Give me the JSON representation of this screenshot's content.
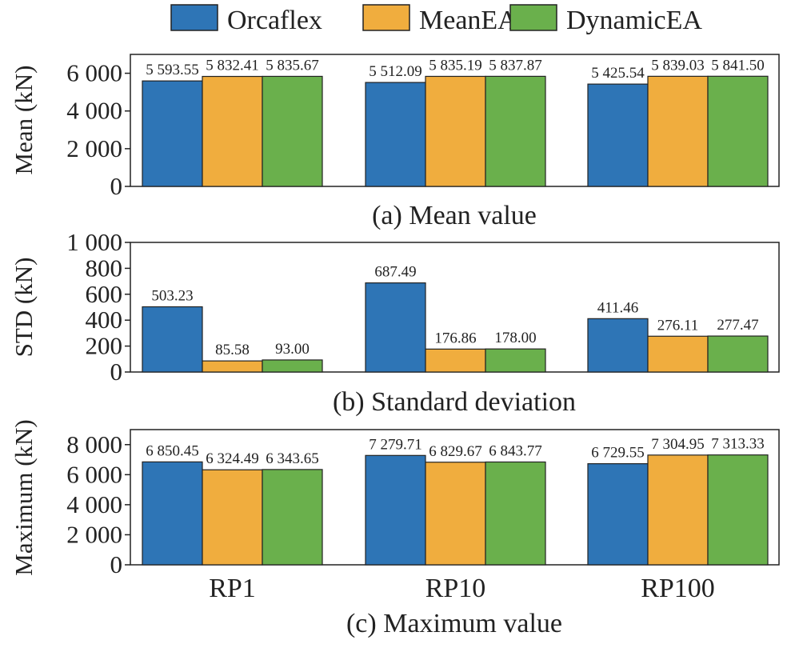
{
  "legend": [
    {
      "name": "Orcaflex",
      "color": "#2e75b6"
    },
    {
      "name": "MeanEA",
      "color": "#f0ad3e"
    },
    {
      "name": "DynamicEA",
      "color": "#6ab04c"
    }
  ],
  "chart_data": [
    {
      "type": "bar",
      "title": "(a) Mean value",
      "ylabel": "Mean (kN)",
      "ylim": [
        0,
        7000
      ],
      "yticks": [
        0,
        2000,
        4000,
        6000
      ],
      "ytick_labels": [
        "0",
        "2 000",
        "4 000",
        "6 000"
      ],
      "categories": [
        "RP1",
        "RP10",
        "RP100"
      ],
      "series": [
        {
          "name": "Orcaflex",
          "values": [
            5593.55,
            5512.09,
            5425.54
          ],
          "labels": [
            "5 593.55",
            "5 512.09",
            "5 425.54"
          ]
        },
        {
          "name": "MeanEA",
          "values": [
            5832.41,
            5835.19,
            5839.03
          ],
          "labels": [
            "5 832.41",
            "5 835.19",
            "5 839.03"
          ]
        },
        {
          "name": "DynamicEA",
          "values": [
            5835.67,
            5837.87,
            5841.5
          ],
          "labels": [
            "5 835.67",
            "5 837.87",
            "5 841.50"
          ]
        }
      ]
    },
    {
      "type": "bar",
      "title": "(b) Standard deviation",
      "ylabel": "STD (kN)",
      "ylim": [
        0,
        1000
      ],
      "yticks": [
        0,
        200,
        400,
        600,
        800,
        1000
      ],
      "ytick_labels": [
        "0",
        "200",
        "400",
        "600",
        "800",
        "1 000"
      ],
      "categories": [
        "RP1",
        "RP10",
        "RP100"
      ],
      "series": [
        {
          "name": "Orcaflex",
          "values": [
            503.23,
            687.49,
            411.46
          ],
          "labels": [
            "503.23",
            "687.49",
            "411.46"
          ]
        },
        {
          "name": "MeanEA",
          "values": [
            85.58,
            176.86,
            276.11
          ],
          "labels": [
            "85.58",
            "176.86",
            "276.11"
          ]
        },
        {
          "name": "DynamicEA",
          "values": [
            93.0,
            178.0,
            277.47
          ],
          "labels": [
            "93.00",
            "178.00",
            "277.47"
          ]
        }
      ]
    },
    {
      "type": "bar",
      "title": "(c) Maximum value",
      "ylabel": "Maximum (kN)",
      "ylim": [
        0,
        9000
      ],
      "yticks": [
        0,
        2000,
        4000,
        6000,
        8000
      ],
      "ytick_labels": [
        "0",
        "2 000",
        "4 000",
        "6 000",
        "8 000"
      ],
      "categories": [
        "RP1",
        "RP10",
        "RP100"
      ],
      "series": [
        {
          "name": "Orcaflex",
          "values": [
            6850.45,
            7279.71,
            6729.55
          ],
          "labels": [
            "6 850.45",
            "7 279.71",
            "6 729.55"
          ]
        },
        {
          "name": "MeanEA",
          "values": [
            6324.49,
            6829.67,
            7304.95
          ],
          "labels": [
            "6 324.49",
            "6 829.67",
            "7 304.95"
          ]
        },
        {
          "name": "DynamicEA",
          "values": [
            6343.65,
            6843.77,
            7313.33
          ],
          "labels": [
            "6 343.65",
            "6 843.77",
            "7 313.33"
          ]
        }
      ]
    }
  ]
}
